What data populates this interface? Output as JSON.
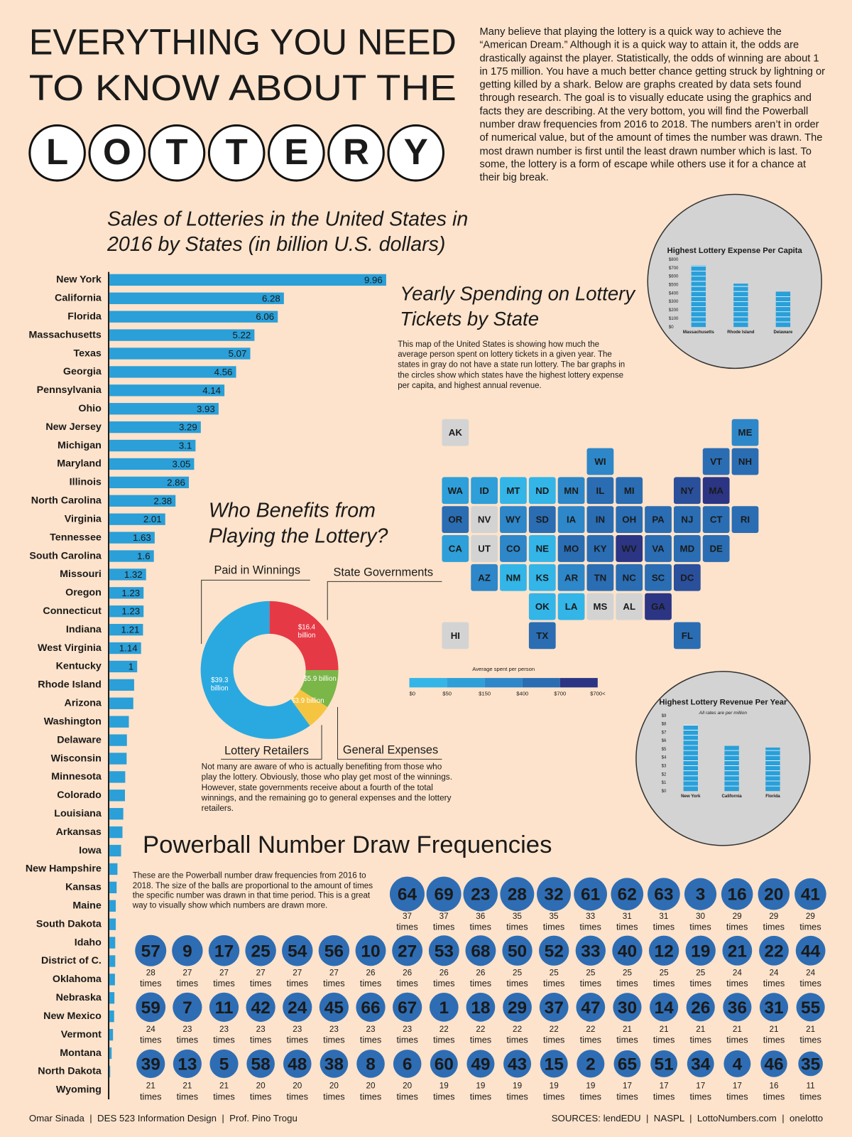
{
  "header": {
    "title_lines": [
      "EVERYTHING YOU NEED",
      "TO KNOW ABOUT THE"
    ],
    "ball_letters": [
      "L",
      "O",
      "T",
      "T",
      "E",
      "R",
      "Y"
    ]
  },
  "intro": "Many believe that playing the lottery is a quick way to achieve the “American Dream.” Although it is a quick way to attain it, the odds are drastically against the player. Statistically, the odds of winning are about 1 in 175 million. You have a much better chance getting struck by lightning or getting killed by a shark. Below are graphs created by data sets found through research. The goal is to visually educate using the graphics and facts they are describing. At the very bottom, you will find the Powerball number draw frequencies from 2016 to 2018. The numbers aren’t in order of numerical value, but of the amount of times the number was drawn. The most drawn number is first until the least drawn number which is last. To some, the lottery is a form of escape while others use it for a chance at their big break.",
  "chart_data": [
    {
      "type": "hbar",
      "title": "Sales of Lotteries in the United States in 2016 by States (in billion U.S. dollars)",
      "color": "#2a9fd8",
      "categories": [
        "New York",
        "California",
        "Florida",
        "Massachusetts",
        "Texas",
        "Georgia",
        "Pennsylvania",
        "Ohio",
        "New Jersey",
        "Michigan",
        "Maryland",
        "Illinois",
        "North Carolina",
        "Virginia",
        "Tennessee",
        "South Carolina",
        "Missouri",
        "Oregon",
        "Connecticut",
        "Indiana",
        "West Virginia",
        "Kentucky",
        "Rhode Island",
        "Arizona",
        "Washington",
        "Delaware",
        "Wisconsin",
        "Minnesota",
        "Colorado",
        "Louisiana",
        "Arkansas",
        "Iowa",
        "New Hampshire",
        "Kansas",
        "Maine",
        "South Dakota",
        "Idaho",
        "District of C.",
        "Oklahoma",
        "Nebraska",
        "New Mexico",
        "Vermont",
        "Montana",
        "North Dakota",
        "Wyoming"
      ],
      "values": [
        9.96,
        6.28,
        6.06,
        5.22,
        5.07,
        4.56,
        4.14,
        3.93,
        3.29,
        3.1,
        3.05,
        2.86,
        2.38,
        2.01,
        1.63,
        1.6,
        1.32,
        1.23,
        1.23,
        1.21,
        1.14,
        1,
        0.89,
        0.86,
        0.7,
        0.63,
        0.62,
        0.57,
        0.56,
        0.5,
        0.47,
        0.42,
        0.29,
        0.26,
        0.23,
        0.23,
        0.21,
        0.21,
        0.2,
        0.18,
        0.17,
        0.13,
        0.08,
        0.03,
        0
      ],
      "value_labels": [
        "9.96",
        "6.28",
        "6.06",
        "5.22",
        "5.07",
        "4.56",
        "4.14",
        "3.93",
        "3.29",
        "3.1",
        "3.05",
        "2.86",
        "2.38",
        "2.01",
        "1.63",
        "1.6",
        "1.32",
        "1.23",
        "1.23",
        "1.21",
        "1.14",
        "1",
        null,
        null,
        null,
        null,
        null,
        null,
        null,
        null,
        null,
        null,
        null,
        null,
        null,
        null,
        null,
        null,
        null,
        null,
        null,
        null,
        null,
        null,
        null
      ]
    },
    {
      "type": "bar",
      "title": "Highest Lottery Expense Per Capita",
      "color": "#2a9fd8",
      "categories": [
        "Massachusetts",
        "Rhode Island",
        "Delaware"
      ],
      "values": [
        730,
        515,
        420
      ],
      "ylim": [
        0,
        800
      ],
      "yticks": [
        {
          "value": 0,
          "label": "$0"
        },
        {
          "value": 100,
          "label": "$100"
        },
        {
          "value": 200,
          "label": "$200"
        },
        {
          "value": 300,
          "label": "$300"
        },
        {
          "value": 400,
          "label": "$400"
        },
        {
          "value": 500,
          "label": "$500"
        },
        {
          "value": 600,
          "label": "$600"
        },
        {
          "value": 700,
          "label": "$700"
        },
        {
          "value": 800,
          "label": "$800"
        }
      ]
    },
    {
      "type": "map",
      "title": "Yearly Spending on Lottery Tickets by State",
      "description": "This map of the United States is showing how much the average person spent on lottery tickets in a given year. The states in gray do not have a state run lottery. The bar graphs in the circles show which states have the highest lottery expense per capita, and highest annual revenue.",
      "states": [
        {
          "label": "AK",
          "color": "#d3d3d3"
        },
        {
          "label": "ME",
          "color": "#2d87c9"
        },
        {
          "label": "WI",
          "color": "#2d87c9"
        },
        {
          "label": "VT",
          "color": "#2a6db3"
        },
        {
          "label": "NH",
          "color": "#2a6db3"
        },
        {
          "label": "WA",
          "color": "#2e9fd9"
        },
        {
          "label": "ID",
          "color": "#2e9fd9"
        },
        {
          "label": "MT",
          "color": "#33b5e8"
        },
        {
          "label": "ND",
          "color": "#33b5e8"
        },
        {
          "label": "MN",
          "color": "#2d87c9"
        },
        {
          "label": "IL",
          "color": "#2a6db3"
        },
        {
          "label": "MI",
          "color": "#2a6db3"
        },
        {
          "label": "NY",
          "color": "#2a4f9b"
        },
        {
          "label": "MA",
          "color": "#2b3584"
        },
        {
          "label": "OR",
          "color": "#2a6db3"
        },
        {
          "label": "NV",
          "color": "#d3d3d3"
        },
        {
          "label": "WY",
          "color": "#2d87c9"
        },
        {
          "label": "SD",
          "color": "#2a6db3"
        },
        {
          "label": "IA",
          "color": "#2d87c9"
        },
        {
          "label": "IN",
          "color": "#2a6db3"
        },
        {
          "label": "OH",
          "color": "#2a6db3"
        },
        {
          "label": "PA",
          "color": "#2a6db3"
        },
        {
          "label": "NJ",
          "color": "#2a6db3"
        },
        {
          "label": "CT",
          "color": "#2a6db3"
        },
        {
          "label": "RI",
          "color": "#2a6db3"
        },
        {
          "label": "CA",
          "color": "#2e9fd9"
        },
        {
          "label": "UT",
          "color": "#d3d3d3"
        },
        {
          "label": "CO",
          "color": "#2d87c9"
        },
        {
          "label": "NE",
          "color": "#33b5e8"
        },
        {
          "label": "MO",
          "color": "#2a6db3"
        },
        {
          "label": "KY",
          "color": "#2a6db3"
        },
        {
          "label": "WV",
          "color": "#2b3584"
        },
        {
          "label": "VA",
          "color": "#2a6db3"
        },
        {
          "label": "MD",
          "color": "#2a6db3"
        },
        {
          "label": "DE",
          "color": "#2a6db3"
        },
        {
          "label": "AZ",
          "color": "#2d87c9"
        },
        {
          "label": "NM",
          "color": "#33b5e8"
        },
        {
          "label": "KS",
          "color": "#33b5e8"
        },
        {
          "label": "AR",
          "color": "#2d87c9"
        },
        {
          "label": "TN",
          "color": "#2a6db3"
        },
        {
          "label": "NC",
          "color": "#2a6db3"
        },
        {
          "label": "SC",
          "color": "#2a6db3"
        },
        {
          "label": "DC",
          "color": "#2a4f9b"
        },
        {
          "label": "OK",
          "color": "#33b5e8"
        },
        {
          "label": "LA",
          "color": "#33b5e8"
        },
        {
          "label": "MS",
          "color": "#d3d3d3"
        },
        {
          "label": "AL",
          "color": "#d3d3d3"
        },
        {
          "label": "GA",
          "color": "#2b3584"
        },
        {
          "label": "HI",
          "color": "#d3d3d3"
        },
        {
          "label": "TX",
          "color": "#2a6db3"
        },
        {
          "label": "FL",
          "color": "#2a6db3"
        }
      ],
      "legend": {
        "title": "Average spent per person",
        "labels": [
          "$0",
          "$50",
          "$150",
          "$400",
          "$700",
          "$700<"
        ],
        "colors": [
          "#33b5e8",
          "#2e9fd9",
          "#2d87c9",
          "#2a6db3",
          "#2b3584"
        ]
      }
    },
    {
      "type": "bar",
      "title": "Highest Lottery Revenue Per Year",
      "subtitle": "All rates are per million",
      "color": "#2a9fd8",
      "categories": [
        "New York",
        "California",
        "Florida"
      ],
      "values": [
        7.9,
        5.4,
        5.2
      ],
      "ylim": [
        0,
        9
      ],
      "yticks": [
        {
          "value": 0,
          "label": "$0"
        },
        {
          "value": 1,
          "label": "$1"
        },
        {
          "value": 2,
          "label": "$2"
        },
        {
          "value": 3,
          "label": "$3"
        },
        {
          "value": 4,
          "label": "$4"
        },
        {
          "value": 5,
          "label": "$5"
        },
        {
          "value": 6,
          "label": "$6"
        },
        {
          "value": 7,
          "label": "$7"
        },
        {
          "value": 8,
          "label": "$8"
        },
        {
          "value": 9,
          "label": "$9"
        }
      ]
    },
    {
      "type": "pie",
      "title": "Who Benefits from Playing the Lottery?",
      "description": "Not many are aware of who is actually benefiting from those who play the lottery. Obviously, those who play get most of the winnings. However, state governments receive about a fourth of the total winnings, and the remaining go to general expenses and the lottery retailers.",
      "categories": [
        "State Governments",
        "General Expenses",
        "Lottery Retailers",
        "Paid in Winnings"
      ],
      "values": [
        16.4,
        5.9,
        3.9,
        39.3
      ],
      "value_labels": [
        "$16.4 billion",
        "$5.9 billion",
        "$3.9 billion",
        "$39.3 billion"
      ],
      "colors": [
        "#e63946",
        "#7ab648",
        "#f5c542",
        "#2aa9e0"
      ]
    },
    {
      "type": "bubble",
      "title": "Powerball Number Draw Frequencies",
      "description": "These are the Powerball number draw frequencies from 2016 to 2018. The size of the balls are proportional to the amount of times the specific number was drawn in that time period. This is a great way to visually show which numbers are drawn more.",
      "color": "#2e6db4",
      "unit": "times",
      "numbers": [
        64,
        69,
        23,
        28,
        32,
        61,
        62,
        63,
        3,
        16,
        20,
        41,
        57,
        9,
        17,
        25,
        54,
        56,
        10,
        27,
        53,
        68,
        50,
        52,
        33,
        40,
        12,
        19,
        21,
        22,
        44,
        59,
        7,
        11,
        42,
        24,
        45,
        66,
        67,
        1,
        18,
        29,
        37,
        47,
        30,
        14,
        26,
        36,
        31,
        55,
        39,
        13,
        5,
        58,
        48,
        38,
        8,
        6,
        60,
        49,
        43,
        15,
        2,
        65,
        51,
        34,
        4,
        46,
        35
      ],
      "values": [
        37,
        37,
        36,
        35,
        35,
        33,
        31,
        31,
        30,
        29,
        29,
        29,
        28,
        27,
        27,
        27,
        27,
        27,
        26,
        26,
        26,
        26,
        25,
        25,
        25,
        25,
        25,
        25,
        24,
        24,
        24,
        24,
        23,
        23,
        23,
        23,
        23,
        23,
        23,
        22,
        22,
        22,
        22,
        22,
        21,
        21,
        21,
        21,
        21,
        21,
        21,
        21,
        21,
        20,
        20,
        20,
        20,
        20,
        19,
        19,
        19,
        19,
        19,
        17,
        17,
        17,
        17,
        16,
        11
      ]
    }
  ],
  "footer": {
    "credit": "Omar Sinada  |  DES 523 Information Design  |  Prof. Pino Trogu",
    "sources": "SOURCES: lendEDU  |  NASPL  |  LottoNumbers.com  |  onelotto"
  }
}
